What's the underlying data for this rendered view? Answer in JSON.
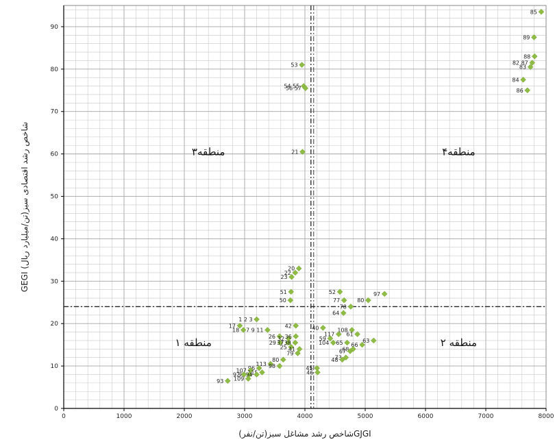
{
  "chart_data": {
    "type": "scatter",
    "xlabel": "شاخص رشد مشاغل سبز(تن/نفر)GJGI",
    "ylabel": "GEGI شاخص رشد اقتصادی سبز(تن/میلیارد ریال)",
    "xlim": [
      0,
      8000
    ],
    "ylim": [
      0,
      95
    ],
    "x_ticks": [
      0,
      1000,
      2000,
      3000,
      4000,
      5000,
      6000,
      7000,
      8000
    ],
    "y_ticks": [
      0,
      10,
      20,
      30,
      40,
      50,
      60,
      70,
      80,
      90
    ],
    "grid": true,
    "legend": "none",
    "colors": {
      "marker": "#8fbc45",
      "grid": "#c8c8c8",
      "axis": "#000000",
      "divider": "#222222"
    },
    "dividers": {
      "x": 4100,
      "y": 24
    },
    "regions": [
      {
        "label": "منطقه ۱",
        "x": 2150,
        "y": 15.5
      },
      {
        "label": "منطقه ۲",
        "x": 6550,
        "y": 15.5
      },
      {
        "label": "منطقه۳",
        "x": 2400,
        "y": 60.5
      },
      {
        "label": "منطقه۴",
        "x": 6550,
        "y": 60.5
      }
    ],
    "points": [
      {
        "label": "85",
        "x": 7920,
        "y": 93.5
      },
      {
        "label": "89",
        "x": 7800,
        "y": 87.5
      },
      {
        "label": "88",
        "x": 7810,
        "y": 83
      },
      {
        "label": "82 87",
        "x": 7770,
        "y": 81.5
      },
      {
        "label": "83",
        "x": 7740,
        "y": 80.5
      },
      {
        "label": "84",
        "x": 7620,
        "y": 77.5
      },
      {
        "label": "86",
        "x": 7690,
        "y": 75
      },
      {
        "label": "53",
        "x": 3950,
        "y": 81
      },
      {
        "label": "54 55",
        "x": 3980,
        "y": 76
      },
      {
        "label": "56 57",
        "x": 4010,
        "y": 75.5
      },
      {
        "label": "21",
        "x": 3960,
        "y": 60.5
      },
      {
        "label": "20",
        "x": 3900,
        "y": 33
      },
      {
        "label": "22",
        "x": 3840,
        "y": 32
      },
      {
        "label": "23",
        "x": 3780,
        "y": 31
      },
      {
        "label": "51",
        "x": 3770,
        "y": 27.5
      },
      {
        "label": "50",
        "x": 3760,
        "y": 25.5
      },
      {
        "label": "52",
        "x": 4580,
        "y": 27.5
      },
      {
        "label": "77",
        "x": 4650,
        "y": 25.5
      },
      {
        "label": "78",
        "x": 4760,
        "y": 24
      },
      {
        "label": "80",
        "x": 5050,
        "y": 25.5
      },
      {
        "label": "97",
        "x": 5320,
        "y": 27
      },
      {
        "label": "64",
        "x": 4640,
        "y": 22.5
      },
      {
        "label": "1 2 3",
        "x": 3200,
        "y": 21
      },
      {
        "label": "17",
        "x": 2920,
        "y": 19.5
      },
      {
        "label": "18",
        "x": 2980,
        "y": 18.5
      },
      {
        "label": "7 9 11",
        "x": 3380,
        "y": 18.5
      },
      {
        "label": "42",
        "x": 3850,
        "y": 19.5
      },
      {
        "label": "40",
        "x": 4300,
        "y": 19
      },
      {
        "label": "108",
        "x": 4780,
        "y": 18.5
      },
      {
        "label": "61",
        "x": 4870,
        "y": 17.5
      },
      {
        "label": "117",
        "x": 4560,
        "y": 17.5
      },
      {
        "label": "59",
        "x": 4420,
        "y": 16.5
      },
      {
        "label": "104",
        "x": 4470,
        "y": 15.5
      },
      {
        "label": "65",
        "x": 4700,
        "y": 15.5
      },
      {
        "label": "26",
        "x": 3580,
        "y": 17
      },
      {
        "label": "32",
        "x": 3730,
        "y": 16.5
      },
      {
        "label": "36",
        "x": 3850,
        "y": 17
      },
      {
        "label": "29",
        "x": 3590,
        "y": 15.5
      },
      {
        "label": "37",
        "x": 3720,
        "y": 15.5
      },
      {
        "label": "38",
        "x": 3840,
        "y": 15.5
      },
      {
        "label": "25",
        "x": 3770,
        "y": 14.5
      },
      {
        "label": "41",
        "x": 3910,
        "y": 14
      },
      {
        "label": "79",
        "x": 3880,
        "y": 13
      },
      {
        "label": "80",
        "x": 3640,
        "y": 11.5
      },
      {
        "label": "113",
        "x": 3430,
        "y": 10.5
      },
      {
        "label": "98",
        "x": 3580,
        "y": 10
      },
      {
        "label": "63",
        "x": 5140,
        "y": 16
      },
      {
        "label": "66",
        "x": 4950,
        "y": 15
      },
      {
        "label": "68",
        "x": 4800,
        "y": 14
      },
      {
        "label": "67",
        "x": 4750,
        "y": 13.5
      },
      {
        "label": "73",
        "x": 4680,
        "y": 12
      },
      {
        "label": "48",
        "x": 4620,
        "y": 11.5
      },
      {
        "label": "45",
        "x": 4200,
        "y": 9.5
      },
      {
        "label": "46",
        "x": 4210,
        "y": 8.5
      },
      {
        "label": "96",
        "x": 3240,
        "y": 9.5
      },
      {
        "label": "107",
        "x": 3100,
        "y": 9
      },
      {
        "label": "115",
        "x": 3290,
        "y": 8.5
      },
      {
        "label": "91",
        "x": 3080,
        "y": 8
      },
      {
        "label": "94",
        "x": 3200,
        "y": 8
      },
      {
        "label": "92",
        "x": 2990,
        "y": 8
      },
      {
        "label": "109",
        "x": 3060,
        "y": 7
      },
      {
        "label": "93",
        "x": 2720,
        "y": 6.5
      }
    ]
  }
}
